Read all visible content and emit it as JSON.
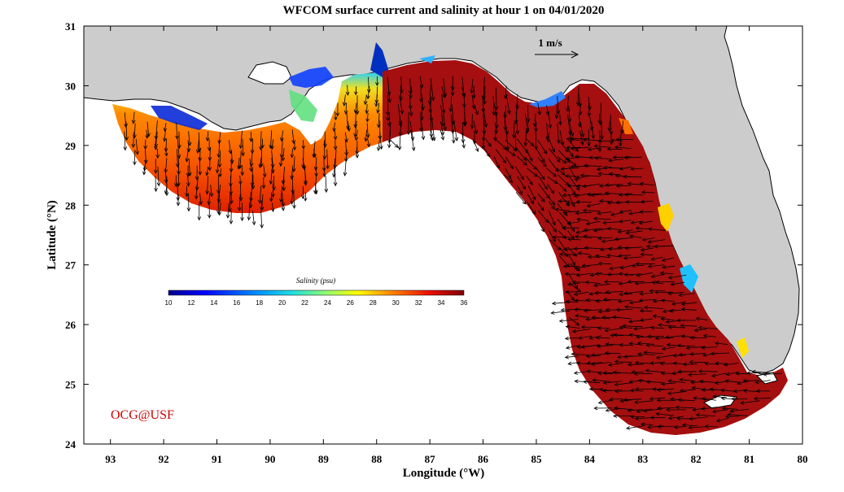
{
  "title": "WFCOM surface current and salinity at hour 1 on 04/01/2020",
  "xlabel": "Longitude (°W)",
  "ylabel": "Latitude (°N)",
  "x_ticks": [
    "93",
    "92",
    "91",
    "90",
    "89",
    "88",
    "87",
    "86",
    "85",
    "84",
    "83",
    "82",
    "81",
    "80"
  ],
  "y_ticks": [
    "31",
    "30",
    "29",
    "28",
    "27",
    "26",
    "25",
    "24"
  ],
  "xlim": [
    93.5,
    80
  ],
  "ylim": [
    24,
    31
  ],
  "colorbar": {
    "title": "Salinity (psu)",
    "ticks": [
      "10",
      "12",
      "14",
      "16",
      "18",
      "20",
      "22",
      "24",
      "26",
      "28",
      "30",
      "32",
      "34",
      "36"
    ],
    "range": [
      10,
      36
    ],
    "colormap": [
      "#00008f",
      "#0000ff",
      "#0080ff",
      "#00ffff",
      "#80ff80",
      "#ffff00",
      "#ff8000",
      "#ff0000",
      "#800000"
    ]
  },
  "vector_scale_label": "1 m/s",
  "credit": "OCG@USF",
  "colors": {
    "land": "#cccccc",
    "coastline": "#000000",
    "water_background": "#ffffff",
    "credit": "#cc0000",
    "open_ocean_salinity": "#a50f0f"
  }
}
